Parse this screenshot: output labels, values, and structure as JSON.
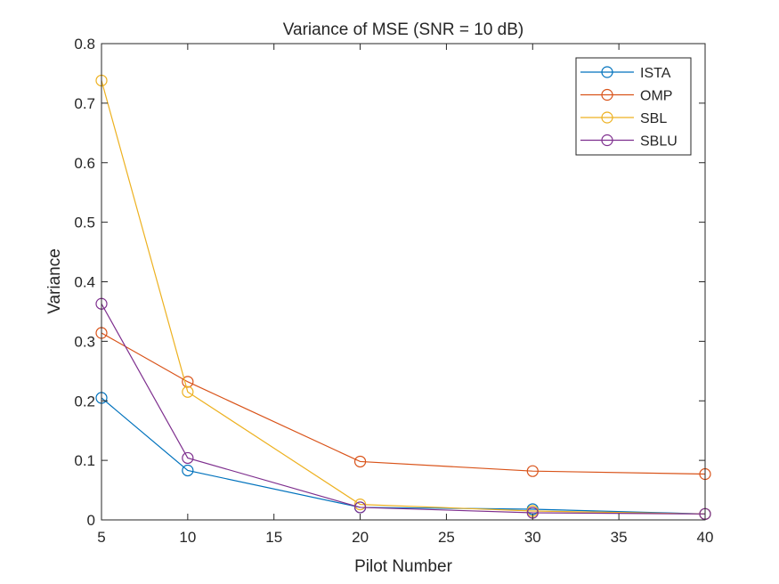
{
  "chart_data": {
    "type": "line",
    "title": "Variance of MSE (SNR = 10 dB)",
    "xlabel": "Pilot Number",
    "ylabel": "Variance",
    "xlim": [
      5,
      40
    ],
    "ylim": [
      0,
      0.8
    ],
    "xticks": [
      5,
      10,
      15,
      20,
      25,
      30,
      35,
      40
    ],
    "yticks": [
      0,
      0.1,
      0.2,
      0.3,
      0.4,
      0.5,
      0.6,
      0.7,
      0.8
    ],
    "xtick_labels": [
      "5",
      "10",
      "15",
      "20",
      "25",
      "30",
      "35",
      "40"
    ],
    "ytick_labels": [
      "0",
      "0.1",
      "0.2",
      "0.3",
      "0.4",
      "0.5",
      "0.6",
      "0.7",
      "0.8"
    ],
    "x": [
      5,
      10,
      20,
      30,
      40
    ],
    "legend_position": "top-right",
    "marker": "circle",
    "grid": false,
    "series": [
      {
        "name": "ISTA",
        "color": "#0072BD",
        "values": [
          0.205,
          0.083,
          0.021,
          0.018,
          0.01
        ]
      },
      {
        "name": "OMP",
        "color": "#D95319",
        "values": [
          0.314,
          0.232,
          0.098,
          0.082,
          0.077
        ]
      },
      {
        "name": "SBL",
        "color": "#EDB120",
        "values": [
          0.738,
          0.215,
          0.026,
          0.015,
          0.01
        ]
      },
      {
        "name": "SBLU",
        "color": "#7E2F8E",
        "values": [
          0.363,
          0.104,
          0.021,
          0.012,
          0.01
        ]
      }
    ]
  }
}
